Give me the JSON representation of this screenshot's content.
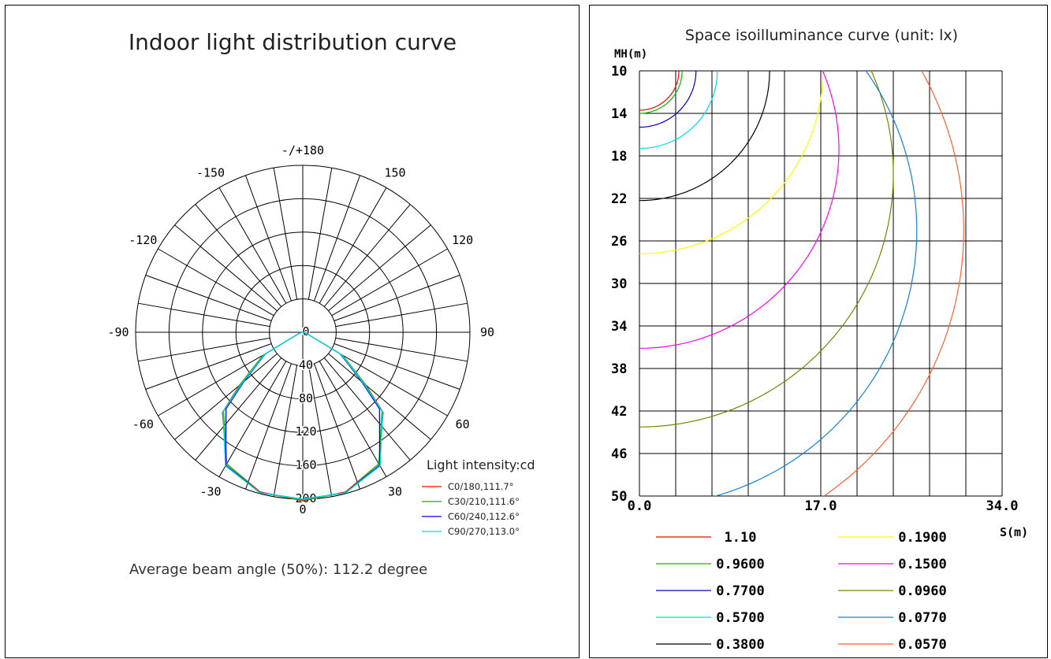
{
  "chart_data": [
    {
      "type": "polar-line",
      "title": "Indoor light distribution curve",
      "angle_labels": [
        {
          "text": "-/+180",
          "angle": 180
        },
        {
          "text": "-150",
          "angle": -150
        },
        {
          "text": "150",
          "angle": 150
        },
        {
          "text": "-120",
          "angle": -120
        },
        {
          "text": "120",
          "angle": 120
        },
        {
          "text": "-90",
          "angle": -90
        },
        {
          "text": "90",
          "angle": 90
        },
        {
          "text": "-60",
          "angle": -60
        },
        {
          "text": "60",
          "angle": 60
        },
        {
          "text": "-30",
          "angle": -30
        },
        {
          "text": "30",
          "angle": 30
        },
        {
          "text": "0",
          "angle": 0
        }
      ],
      "radial_labels": [
        "0",
        "40",
        "80",
        "120",
        "160",
        "200"
      ],
      "r_max": 200,
      "legend_title": "Light intensity:cd",
      "series": [
        {
          "name": "C0/180,111.7°",
          "color": "#ff0000",
          "angles": [
            -90,
            -75,
            -60,
            -50,
            -45,
            -30,
            -15,
            0,
            15,
            30,
            45,
            50,
            60,
            75,
            90
          ],
          "values": [
            0,
            4,
            55,
            99,
            136,
            182,
            198,
            202,
            198,
            182,
            136,
            99,
            55,
            4,
            0
          ]
        },
        {
          "name": "C30/210,111.6°",
          "color": "#00c000",
          "angles": [
            -90,
            -75,
            -60,
            -50,
            -45,
            -30,
            -15,
            0,
            15,
            30,
            45,
            50,
            60,
            75,
            90
          ],
          "values": [
            0,
            4,
            55,
            98,
            134,
            182,
            199,
            201,
            199,
            182,
            134,
            98,
            55,
            4,
            0
          ]
        },
        {
          "name": "C60/240,112.6°",
          "color": "#0000ff",
          "angles": [
            -90,
            -75,
            -60,
            -50,
            -45,
            -30,
            -15,
            0,
            15,
            30,
            45,
            50,
            60,
            75,
            90
          ],
          "values": [
            0,
            4,
            52,
            92,
            130,
            184,
            199,
            200,
            199,
            184,
            130,
            92,
            52,
            4,
            0
          ]
        },
        {
          "name": "C90/270,113.0°",
          "color": "#00dede",
          "angles": [
            -90,
            -75,
            -60,
            -50,
            -45,
            -30,
            -15,
            0,
            15,
            30,
            45,
            50,
            60,
            75,
            90
          ],
          "values": [
            0,
            4,
            53,
            95,
            135,
            185,
            199,
            200,
            199,
            185,
            135,
            95,
            53,
            4,
            0
          ]
        }
      ],
      "footer": "Average beam angle (50%): 112.2 degree"
    },
    {
      "type": "line",
      "title": "Space isoilluminance curve (unit: lx)",
      "ylabel": "MH(m)",
      "xlabel": "S(m)",
      "y_ticks": [
        "10",
        "14",
        "18",
        "22",
        "26",
        "30",
        "34",
        "38",
        "42",
        "46",
        "50"
      ],
      "ylim": [
        10,
        50
      ],
      "x_ticks": [
        "0.0",
        "17.0",
        "34.0"
      ],
      "xlim": [
        0,
        34
      ],
      "grid": true,
      "series": [
        {
          "name": "1.10",
          "color": "#ff0000",
          "R": 3.7,
          "center_h": 10
        },
        {
          "name": "0.9600",
          "color": "#00c000",
          "R": 4.0,
          "center_h": 10
        },
        {
          "name": "0.7700",
          "color": "#0000c0",
          "R": 5.3,
          "center_h": 10
        },
        {
          "name": "0.5700",
          "color": "#00dede",
          "R": 7.3,
          "center_h": 10
        },
        {
          "name": "0.3800",
          "color": "#000000",
          "R": 12.2,
          "center_h": 10
        },
        {
          "name": "0.1900",
          "color": "#ffff00",
          "R": 17.2,
          "center_h": 10
        },
        {
          "name": "0.1500",
          "color": "#ff00ff",
          "R": 18.7,
          "center_h": 17.4
        },
        {
          "name": "0.0960",
          "color": "#808000",
          "R": 23.8,
          "center_h": 19.7
        },
        {
          "name": "0.0770",
          "color": "#1080e0",
          "R": 26.0,
          "center_h": 25.0
        },
        {
          "name": "0.0570",
          "color": "#ff6030",
          "R": 30.4,
          "center_h": 25.0
        }
      ]
    }
  ]
}
